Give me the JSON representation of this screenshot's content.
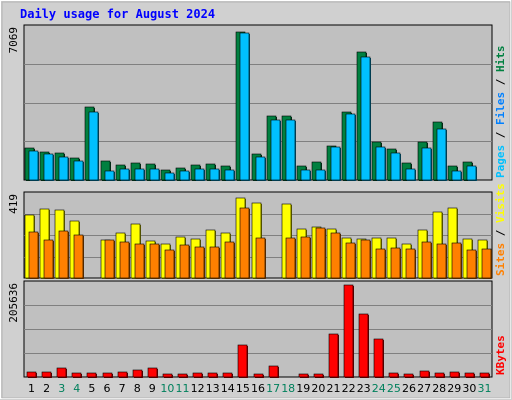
{
  "chart_data": {
    "type": "bar",
    "title": "Daily usage for August 2024",
    "days": [
      "1",
      "2",
      "3",
      "4",
      "5",
      "6",
      "7",
      "8",
      "9",
      "10",
      "11",
      "12",
      "13",
      "14",
      "15",
      "16",
      "17",
      "18",
      "19",
      "20",
      "21",
      "22",
      "23",
      "24",
      "25",
      "26",
      "27",
      "28",
      "29",
      "30",
      "31"
    ],
    "weekend_days": [
      "3",
      "4",
      "10",
      "11",
      "17",
      "18",
      "24",
      "25",
      "31"
    ],
    "panels": [
      {
        "id": "hits-files-pages",
        "y_max_label": "7069",
        "y_max": 7069,
        "side_label": [
          "Pages",
          "Files",
          "Hits"
        ],
        "side_colors": [
          "#00c0ff",
          "#0080ff",
          "#008040"
        ],
        "series": [
          {
            "name": "Hits",
            "color": "#008040",
            "values": [
              1500,
              1300,
              1250,
              1050,
              3400,
              900,
              700,
              800,
              750,
              450,
              550,
              700,
              750,
              650,
              6950,
              1200,
              3000,
              3000,
              650,
              850,
              1600,
              3200,
              6000,
              1800,
              1450,
              800,
              1800,
              2700,
              650,
              850,
              0
            ]
          },
          {
            "name": "Files",
            "color": "#00c0ff",
            "values": [
              1350,
              1200,
              1100,
              900,
              3200,
              400,
              500,
              500,
              500,
              350,
              400,
              500,
              500,
              450,
              6900,
              1100,
              2800,
              2800,
              450,
              450,
              1550,
              3100,
              5750,
              1550,
              1250,
              500,
              1500,
              2400,
              400,
              650,
              0
            ]
          }
        ]
      },
      {
        "id": "visits-sites",
        "y_max_label": "419",
        "y_max": 419,
        "side_label": [
          "Sites",
          "Visits"
        ],
        "side_colors": [
          "#ff8000",
          "#ffff00"
        ],
        "series": [
          {
            "name": "Visits",
            "color": "#ffff00",
            "values": [
              320,
              355,
              345,
              290,
              0,
              195,
              230,
              275,
              190,
              175,
              210,
              200,
              245,
              230,
              410,
              385,
              0,
              380,
              250,
              260,
              250,
              205,
              200,
              205,
              205,
              175,
              245,
              335,
              360,
              200,
              195
            ]
          },
          {
            "name": "Sites",
            "color": "#ff8000",
            "values": [
              235,
              195,
              240,
              220,
              0,
              195,
              185,
              175,
              175,
              145,
              170,
              160,
              160,
              185,
              360,
              205,
              0,
              205,
              210,
              255,
              230,
              180,
              195,
              150,
              155,
              150,
              185,
              175,
              180,
              145,
              150
            ]
          }
        ]
      },
      {
        "id": "kbytes",
        "y_max_label": "205636",
        "y_max": 205636,
        "side_label": [
          "KBytes"
        ],
        "side_colors": [
          "#ff0000"
        ],
        "series": [
          {
            "name": "KBytes",
            "color": "#ff0000",
            "values": [
              12000,
              12000,
              20000,
              8000,
              8000,
              8000,
              12000,
              16000,
              20000,
              7000,
              7000,
              8000,
              10000,
              9000,
              72000,
              7000,
              25000,
              0,
              7000,
              6000,
              95000,
              205000,
              140000,
              85000,
              10000,
              7000,
              14000,
              9000,
              11000,
              10000,
              8000
            ]
          }
        ]
      }
    ]
  }
}
